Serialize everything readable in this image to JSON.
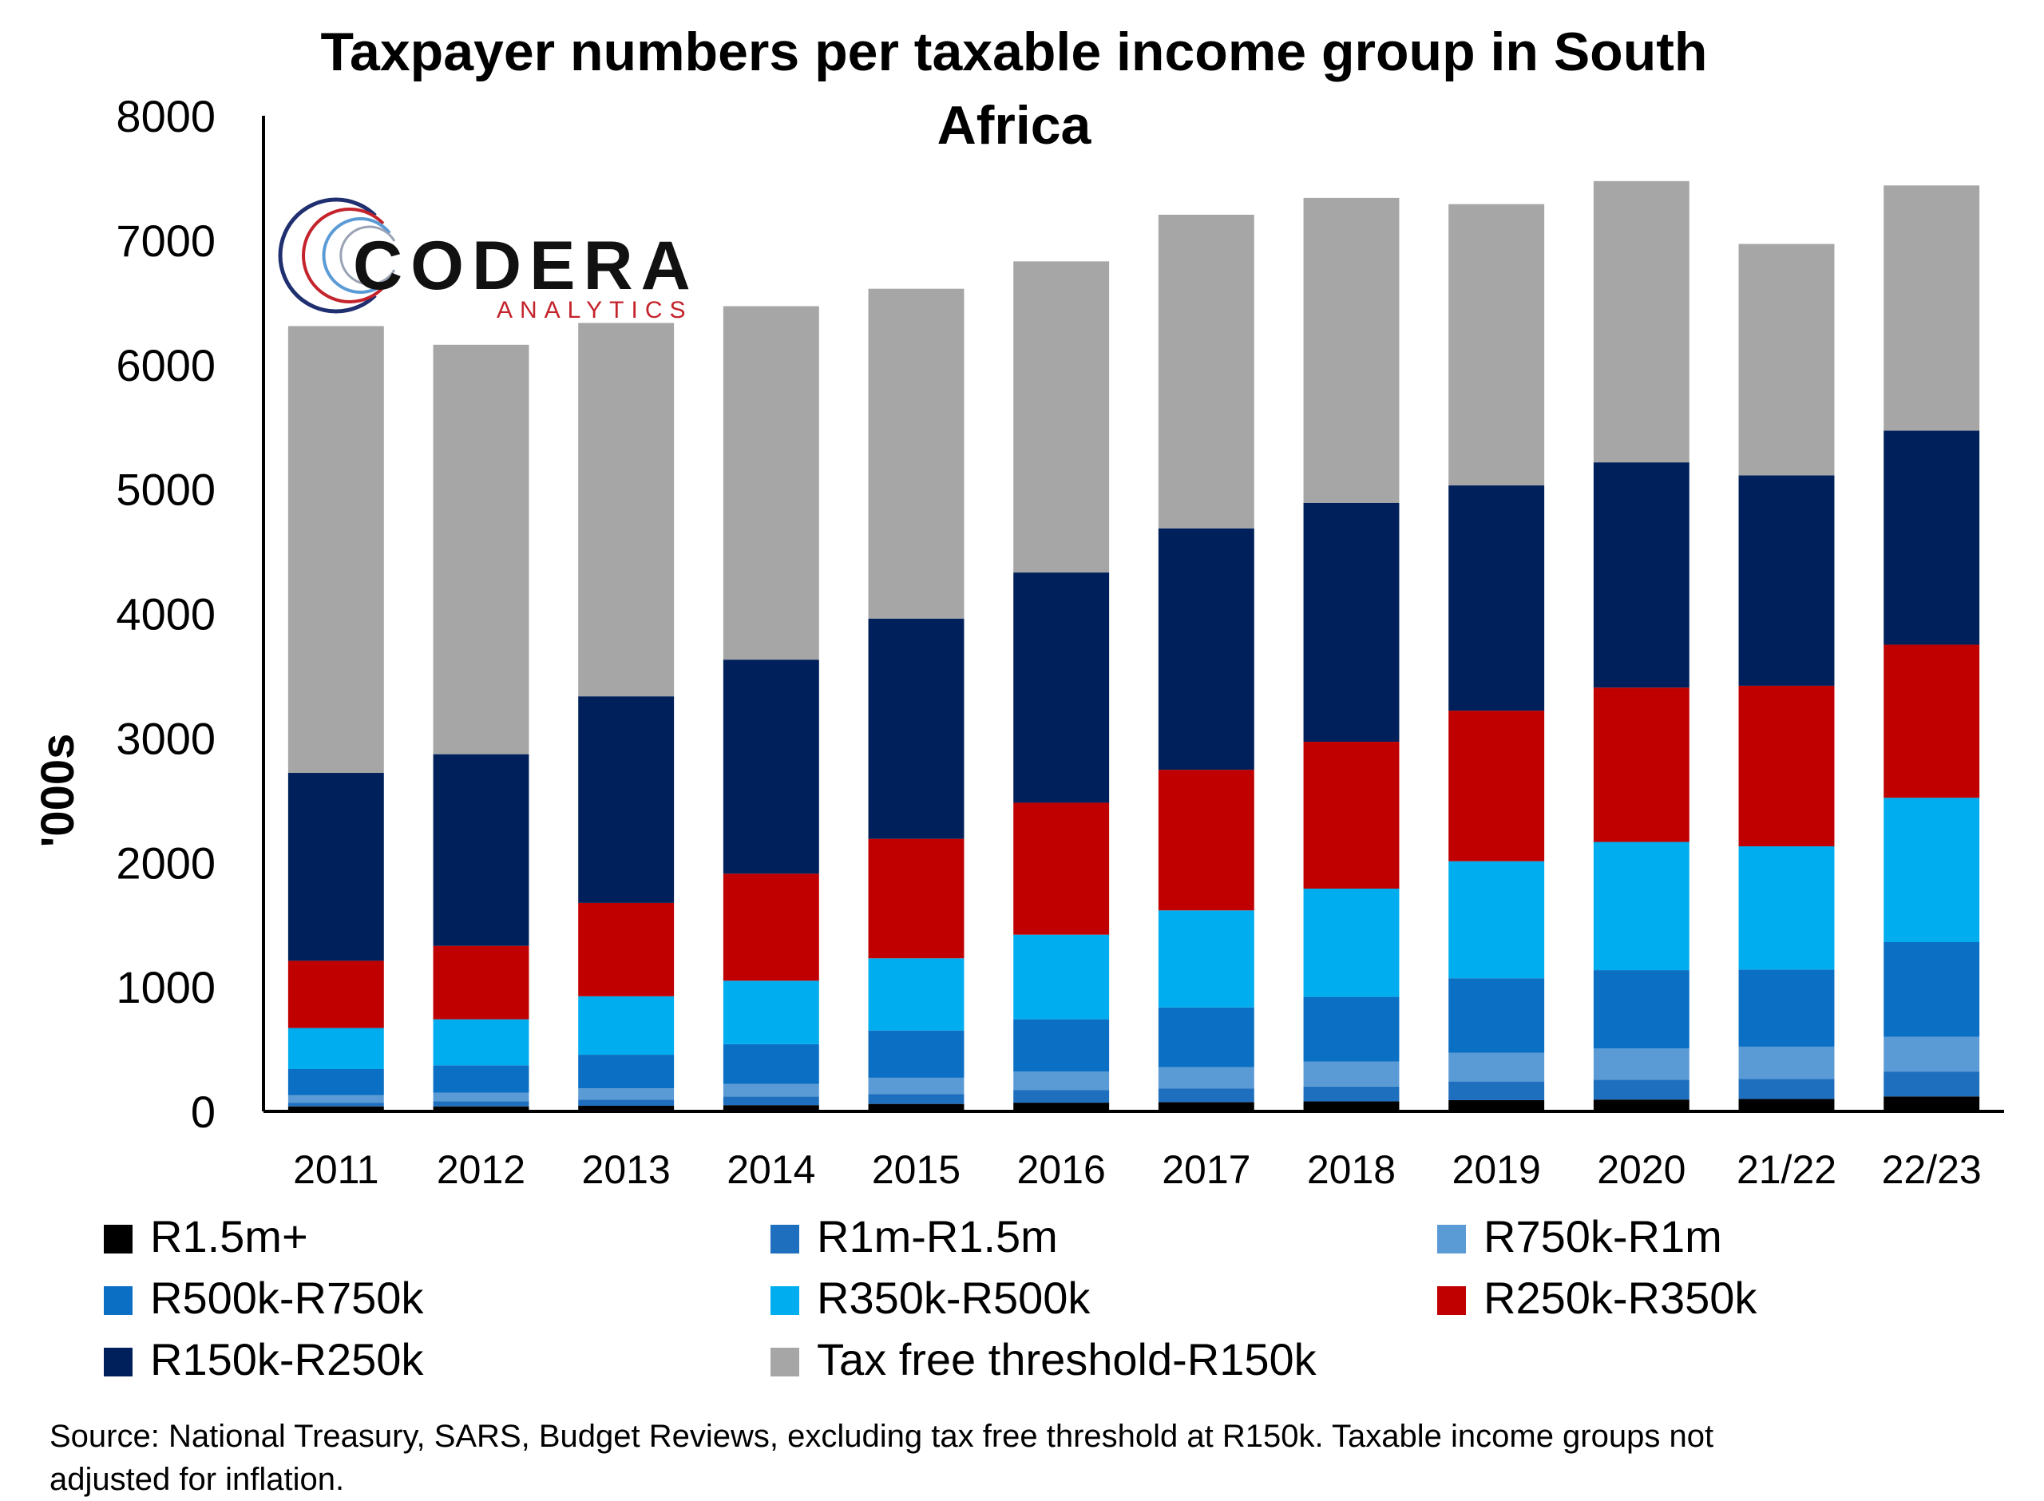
{
  "chart_data": {
    "type": "bar",
    "stacked": true,
    "title_lines": [
      "Taxpayer numbers per taxable income group in South",
      "Africa"
    ],
    "ylabel": "'000s",
    "xlabel": "",
    "ylim": [
      0,
      8000
    ],
    "yticks": [
      "0",
      "1000",
      "2000",
      "3000",
      "4000",
      "5000",
      "6000",
      "7000",
      "8000"
    ],
    "grid": false,
    "legend_position": "bottom",
    "categories": [
      "2011",
      "2012",
      "2013",
      "2014",
      "2015",
      "2016",
      "2017",
      "2018",
      "2019",
      "2020",
      "21/22",
      "22/23"
    ],
    "series": [
      {
        "name": "R1.5m+",
        "color": "#000000",
        "values": [
          40,
          40,
          45,
          50,
          60,
          70,
          75,
          80,
          90,
          95,
          100,
          120
        ]
      },
      {
        "name": "R1m-R1.5m",
        "color": "#1f6fbf",
        "values": [
          30,
          40,
          50,
          70,
          80,
          100,
          110,
          120,
          150,
          160,
          160,
          200
        ]
      },
      {
        "name": "R750k-R1m",
        "color": "#5b9bd5",
        "values": [
          60,
          70,
          90,
          100,
          130,
          150,
          170,
          200,
          230,
          250,
          260,
          280
        ]
      },
      {
        "name": "R500k-R750k",
        "color": "#0b6fc4",
        "values": [
          210,
          220,
          270,
          320,
          380,
          420,
          480,
          520,
          600,
          630,
          620,
          760
        ]
      },
      {
        "name": "R350k-R500k",
        "color": "#00aeef",
        "values": [
          330,
          370,
          470,
          510,
          580,
          680,
          780,
          870,
          940,
          1030,
          990,
          1160
        ]
      },
      {
        "name": "R250k-R350k",
        "color": "#c00000",
        "values": [
          540,
          590,
          750,
          860,
          960,
          1060,
          1130,
          1180,
          1210,
          1240,
          1290,
          1230
        ]
      },
      {
        "name": "R150k-R250k",
        "color": "#00205b",
        "values": [
          1510,
          1540,
          1660,
          1720,
          1770,
          1850,
          1940,
          1920,
          1810,
          1810,
          1690,
          1720
        ]
      },
      {
        "name": "Tax free threshold-R150k",
        "color": "#a6a6a6",
        "values": [
          3590,
          3290,
          3000,
          2840,
          2650,
          2500,
          2520,
          2450,
          2260,
          2260,
          1860,
          1970
        ]
      }
    ],
    "source": {
      "line1": "Source: National Treasury, SARS, Budget Reviews, excluding tax free threshold at R150k. Taxable income groups not",
      "line2": "adjusted for inflation."
    }
  },
  "logo": {
    "name": "CODERA",
    "tagline": "ANALYTICS"
  }
}
